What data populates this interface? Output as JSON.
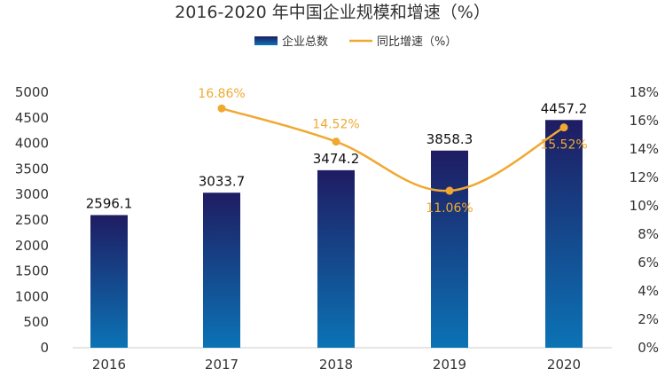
{
  "chart_data": {
    "type": "bar",
    "title": "2016-2020 年中国企业规模和增速（%）",
    "categories": [
      "2016",
      "2017",
      "2018",
      "2019",
      "2020"
    ],
    "series": [
      {
        "name": "企业总数",
        "type": "bar",
        "axis": "left",
        "values": [
          2596.1,
          3033.7,
          3474.2,
          3858.3,
          4457.2
        ],
        "labels": [
          "2596.1",
          "3033.7",
          "3474.2",
          "3858.3",
          "4457.2"
        ],
        "gradient": [
          "#1f1c62",
          "#0b73b5"
        ]
      },
      {
        "name": "同比增速（%）",
        "type": "line",
        "axis": "right",
        "values": [
          null,
          16.86,
          14.52,
          11.06,
          15.52
        ],
        "labels": [
          "",
          "16.86%",
          "14.52%",
          "11.06%",
          "15.52%"
        ],
        "color": "#f0a830"
      }
    ],
    "left_axis": {
      "min": 0,
      "max": 5000,
      "step": 500,
      "ticks": [
        "0",
        "500",
        "1000",
        "1500",
        "2000",
        "2500",
        "3000",
        "3500",
        "4000",
        "4500",
        "5000"
      ]
    },
    "right_axis": {
      "min": 0,
      "max": 18,
      "step": 2,
      "ticks": [
        "0%",
        "2%",
        "4%",
        "6%",
        "8%",
        "10%",
        "12%",
        "14%",
        "16%",
        "18%"
      ]
    },
    "legend_position": "top-center",
    "grid": false
  }
}
